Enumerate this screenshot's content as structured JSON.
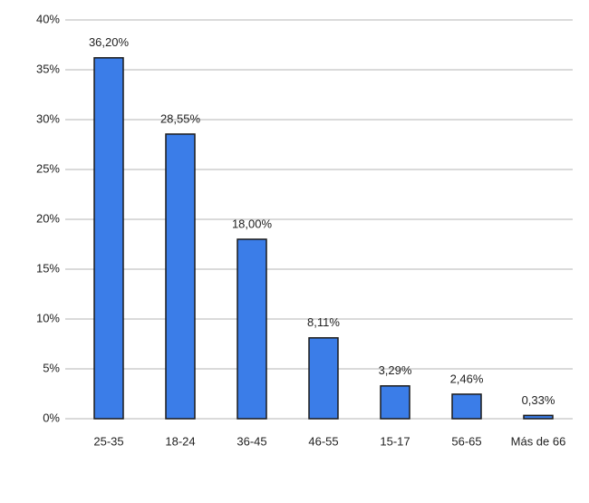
{
  "chart_data": {
    "type": "bar",
    "categories": [
      "25-35",
      "18-24",
      "36-45",
      "46-55",
      "15-17",
      "56-65",
      "Más de 66"
    ],
    "values": [
      36.2,
      28.55,
      18,
      8.11,
      3.29,
      2.46,
      0.33
    ],
    "value_labels": [
      "36,20%",
      "28,55%",
      "18,00%",
      "8,11%",
      "3,29%",
      "2,46%",
      "0,33%"
    ],
    "color": "#3b7de8",
    "ylim": [
      0,
      40
    ],
    "yticks": [
      {
        "value": 0,
        "label": "0%"
      },
      {
        "value": 5,
        "label": "5%"
      },
      {
        "value": 10,
        "label": "10%"
      },
      {
        "value": 15,
        "label": "15%"
      },
      {
        "value": 20,
        "label": "20%"
      },
      {
        "value": 25,
        "label": "25%"
      },
      {
        "value": 30,
        "label": "30%"
      },
      {
        "value": 35,
        "label": "35%"
      },
      {
        "value": 40,
        "label": "40%"
      }
    ],
    "grid": true
  }
}
